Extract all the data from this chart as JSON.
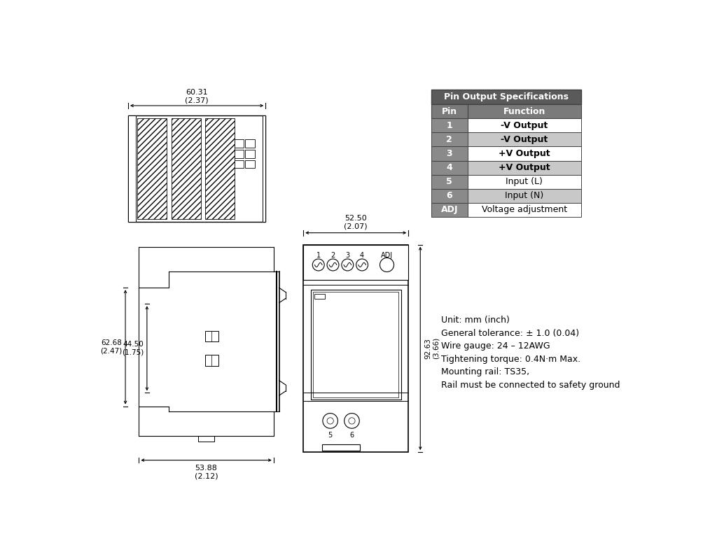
{
  "bg_color": "#ffffff",
  "table_title": "Pin Output Specifications",
  "table_header": [
    "Pin",
    "Function"
  ],
  "table_rows": [
    [
      "1",
      "-V Output"
    ],
    [
      "2",
      "-V Output"
    ],
    [
      "3",
      "+V Output"
    ],
    [
      "4",
      "+V Output"
    ],
    [
      "5",
      "Input (L)"
    ],
    [
      "6",
      "Input (N)"
    ],
    [
      "ADJ",
      "Voltage adjustment"
    ]
  ],
  "table_title_bg": "#5a5a5a",
  "table_header_bg": "#7a7a7a",
  "table_pin_col_bg": "#8a8a8a",
  "table_row_white": "#ffffff",
  "table_row_gray": "#c8c8c8",
  "notes": [
    "Unit: mm (inch)",
    "General tolerance: ± 1.0 (0.04)",
    "Wire gauge: 24 – 12AWG",
    "Tightening torque: 0.4N·m Max.",
    "Mounting rail: TS35,",
    "Rail must be connected to safety ground"
  ],
  "dim_top_label": "60.31\n(2.37)",
  "dim_bottom_label": "53.88\n(2.12)",
  "dim_side_label1": "62.68\n(2.47)",
  "dim_side_label2": "44.50\n(1.75)",
  "dim_front_width": "52.50\n(2.07)",
  "dim_front_height": "92.63\n(3.66)"
}
